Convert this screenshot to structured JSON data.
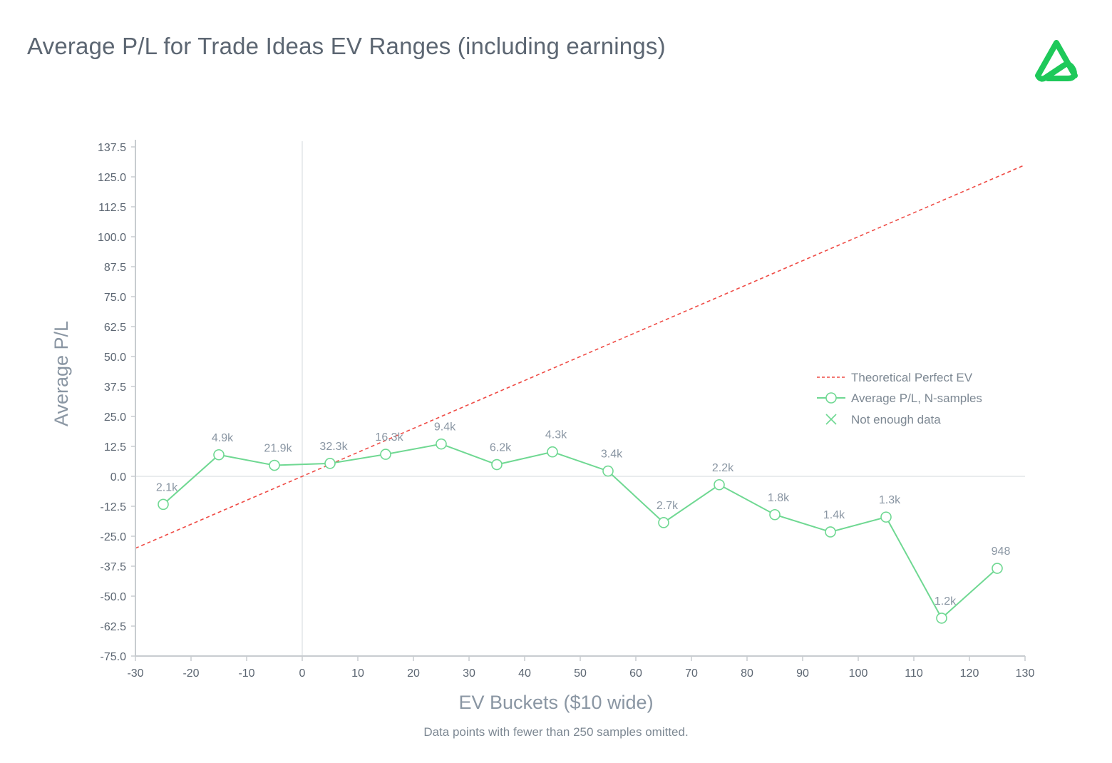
{
  "header": {
    "title": "Average P/L for Trade Ideas EV Ranges (including earnings)",
    "footnote": "Data points with fewer than 250 samples omitted."
  },
  "brand": {
    "logo_icon": "green-triangle-a-logo-icon",
    "color": "#1ec95a"
  },
  "colors": {
    "series_line": "#6fd892",
    "theory_line": "#ef4b45",
    "axis": "#c8ccd0",
    "zero_line": "#e2e5e8"
  },
  "chart_data": {
    "type": "line",
    "xlabel": "EV Buckets ($10 wide)",
    "ylabel": "Average P/L",
    "xlim": [
      -30,
      130
    ],
    "ylim": [
      -75,
      137.5
    ],
    "x_ticks": [
      "-30",
      "-20",
      "-10",
      "0",
      "10",
      "20",
      "30",
      "40",
      "50",
      "60",
      "70",
      "80",
      "90",
      "100",
      "110",
      "120",
      "130"
    ],
    "y_ticks": [
      "137.5",
      "125.0",
      "112.5",
      "100.0",
      "87.5",
      "75.0",
      "62.5",
      "50.0",
      "37.5",
      "25.0",
      "12.5",
      "0.0",
      "-12.5",
      "-25.0",
      "-37.5",
      "-50.0",
      "-62.5",
      "-75.0"
    ],
    "grid": false,
    "legend_position": "right",
    "legend": [
      {
        "name": "Theoretical Perfect EV",
        "style": "dashed"
      },
      {
        "name": "Average P/L, N-samples",
        "style": "line-circle"
      },
      {
        "name": "Not enough data",
        "style": "cross"
      }
    ],
    "series": [
      {
        "name": "Average P/L, N-samples",
        "x": [
          -25,
          -15,
          -5,
          5,
          15,
          25,
          35,
          45,
          55,
          65,
          75,
          85,
          95,
          105,
          115,
          125
        ],
        "values": [
          -11.7,
          9.0,
          4.6,
          5.4,
          9.2,
          13.5,
          4.9,
          10.2,
          2.2,
          -19.3,
          -3.5,
          -16.0,
          -23.2,
          -17.0,
          -59.2,
          -38.4
        ],
        "labels": [
          "2.1k",
          "4.9k",
          "21.9k",
          "32.3k",
          "16.3k",
          "9.4k",
          "6.2k",
          "4.3k",
          "3.4k",
          "2.7k",
          "2.2k",
          "1.8k",
          "1.4k",
          "1.3k",
          "1.2k",
          "948"
        ]
      },
      {
        "name": "Theoretical Perfect EV",
        "x": [
          -30,
          130
        ],
        "values": [
          -30,
          130
        ]
      }
    ]
  }
}
